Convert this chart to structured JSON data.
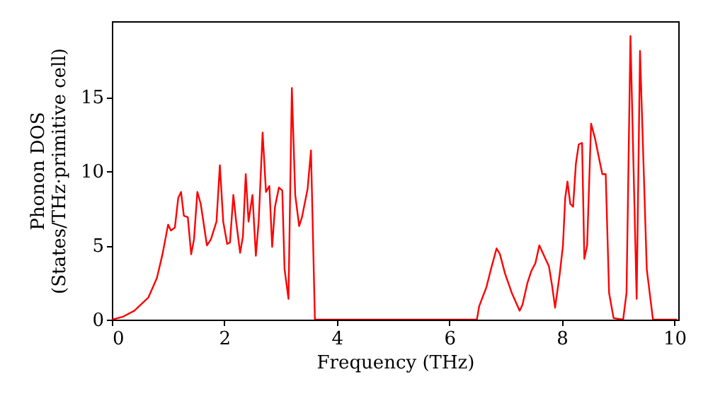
{
  "chart_data": {
    "type": "line",
    "xlabel": "Frequency (THz)",
    "ylabel": "Phonon DOS\n(States/THz·primitive cell)",
    "xlim": [
      0,
      10.07
    ],
    "ylim": [
      0,
      20.1
    ],
    "xticks": [
      0,
      2,
      4,
      6,
      8,
      10
    ],
    "yticks": [
      0,
      5,
      10,
      15
    ],
    "grid": false,
    "marker": "none",
    "line_style": "solid",
    "series": [
      {
        "color": "#ff0000",
        "x": [
          0,
          0.2,
          0.4,
          0.65,
          0.8,
          0.9,
          1.0,
          1.05,
          1.12,
          1.18,
          1.23,
          1.28,
          1.35,
          1.41,
          1.46,
          1.52,
          1.58,
          1.69,
          1.76,
          1.86,
          1.92,
          1.98,
          2.05,
          2.1,
          2.16,
          2.21,
          2.28,
          2.33,
          2.38,
          2.43,
          2.5,
          2.56,
          2.61,
          2.68,
          2.74,
          2.8,
          2.85,
          2.9,
          2.97,
          3.03,
          3.07,
          3.14,
          3.2,
          3.26,
          3.33,
          3.38,
          3.48,
          3.54,
          3.61,
          6.49,
          6.53,
          6.66,
          6.74,
          6.84,
          6.9,
          6.99,
          7.11,
          7.25,
          7.3,
          7.39,
          7.46,
          7.53,
          7.6,
          7.66,
          7.77,
          7.83,
          7.88,
          7.96,
          8.02,
          8.06,
          8.1,
          8.15,
          8.2,
          8.25,
          8.3,
          8.36,
          8.4,
          8.45,
          8.52,
          8.59,
          8.67,
          8.72,
          8.78,
          8.84,
          8.92,
          9.09,
          9.15,
          9.22,
          9.33,
          9.39,
          9.51,
          9.62,
          10.05
        ],
        "values": [
          0,
          0.2,
          0.6,
          1.5,
          2.8,
          4.4,
          6.4,
          6.0,
          6.2,
          8.2,
          8.6,
          7.0,
          6.9,
          4.4,
          5.4,
          8.6,
          7.8,
          5.0,
          5.4,
          6.6,
          10.4,
          6.6,
          5.1,
          5.2,
          8.4,
          6.6,
          4.5,
          5.6,
          9.8,
          6.6,
          8.4,
          4.3,
          6.6,
          12.6,
          8.6,
          9.0,
          4.9,
          7.6,
          8.9,
          8.7,
          3.4,
          1.4,
          15.6,
          8.4,
          6.3,
          6.9,
          8.8,
          11.4,
          0,
          0,
          0.9,
          2.2,
          3.4,
          4.8,
          4.4,
          3.1,
          1.8,
          0.6,
          1.0,
          2.5,
          3.3,
          3.8,
          5.0,
          4.5,
          3.6,
          2.2,
          0.8,
          3.0,
          5.0,
          8.2,
          9.3,
          7.8,
          7.6,
          10.5,
          11.8,
          11.9,
          4.1,
          5.0,
          13.2,
          12.2,
          10.7,
          9.8,
          9.8,
          1.8,
          0.1,
          0,
          1.8,
          19.1,
          1.4,
          18.1,
          3.4,
          0,
          0
        ]
      }
    ]
  }
}
